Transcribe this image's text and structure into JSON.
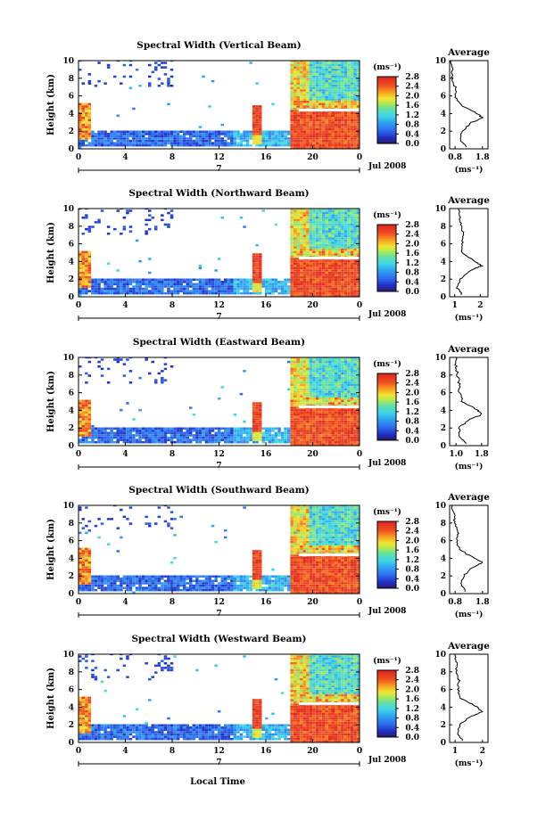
{
  "chart_data": [
    {
      "type": "heatmap",
      "title": "Spectral Width (Vertical Beam)",
      "avg_title": "Average",
      "xlabel": "",
      "ylabel": "Height (km)",
      "xlim": [
        0,
        24
      ],
      "ylim": [
        0,
        10
      ],
      "xticks": [
        "0",
        "4",
        "8",
        "12",
        "16",
        "20",
        "0"
      ],
      "yticks": [
        "0",
        "2",
        "4",
        "6",
        "8",
        "10"
      ],
      "date_marker": "7",
      "date_label": "Jul 2008",
      "colorbar": {
        "unit": "(ms⁻¹)",
        "ticks": [
          "0.0",
          "0.4",
          "0.8",
          "1.2",
          "1.6",
          "2.0",
          "2.4",
          "2.8"
        ]
      },
      "average": {
        "xlabel": "(ms⁻¹)",
        "xticks": [
          "0.8",
          "1.8"
        ],
        "xlim": [
          0.6,
          2.0
        ],
        "yticks": [
          "0",
          "2",
          "4",
          "6",
          "8",
          "10"
        ],
        "profile": [
          [
            0.2,
            1.25
          ],
          [
            1,
            1.0
          ],
          [
            2,
            1.05
          ],
          [
            3,
            1.4
          ],
          [
            3.5,
            1.8
          ],
          [
            4,
            1.6
          ],
          [
            5,
            1.0
          ],
          [
            6,
            0.8
          ],
          [
            7,
            0.8
          ],
          [
            8,
            0.7
          ],
          [
            9,
            0.7
          ],
          [
            10,
            0.65
          ]
        ]
      }
    },
    {
      "type": "heatmap",
      "title": "Spectral Width (Northward Beam)",
      "avg_title": "Average",
      "xlabel": "",
      "ylabel": "Height (km)",
      "xlim": [
        0,
        24
      ],
      "ylim": [
        0,
        10
      ],
      "xticks": [
        "0",
        "4",
        "8",
        "12",
        "16",
        "20",
        "0"
      ],
      "yticks": [
        "0",
        "2",
        "4",
        "6",
        "8",
        "10"
      ],
      "date_marker": "7",
      "date_label": "Jul 2008",
      "colorbar": {
        "unit": "(ms⁻¹)",
        "ticks": [
          "0.0",
          "0.4",
          "0.8",
          "1.2",
          "1.6",
          "2.0",
          "2.4",
          "2.8"
        ]
      },
      "average": {
        "xlabel": "(ms⁻¹)",
        "xticks": [
          "1",
          "2"
        ],
        "xlim": [
          0.8,
          2.3
        ],
        "yticks": [
          "0",
          "2",
          "4",
          "6",
          "8",
          "10"
        ],
        "profile": [
          [
            0.2,
            1.3
          ],
          [
            1,
            1.1
          ],
          [
            2,
            1.2
          ],
          [
            3,
            1.6
          ],
          [
            3.5,
            2.05
          ],
          [
            4,
            1.8
          ],
          [
            5,
            1.3
          ],
          [
            6,
            1.3
          ],
          [
            7,
            1.35
          ],
          [
            8,
            1.25
          ],
          [
            9,
            1.2
          ],
          [
            10,
            1.15
          ]
        ]
      }
    },
    {
      "type": "heatmap",
      "title": "Spectral Width (Eastward Beam)",
      "avg_title": "Average",
      "xlabel": "",
      "ylabel": "Height (km)",
      "xlim": [
        0,
        24
      ],
      "ylim": [
        0,
        10
      ],
      "xticks": [
        "0",
        "4",
        "8",
        "12",
        "16",
        "20",
        "0"
      ],
      "yticks": [
        "0",
        "2",
        "4",
        "6",
        "8",
        "10"
      ],
      "date_marker": "7",
      "date_label": "Jul 2008",
      "colorbar": {
        "unit": "(ms⁻¹)",
        "ticks": [
          "0.0",
          "0.4",
          "0.8",
          "1.2",
          "1.6",
          "2.0",
          "2.4",
          "2.8"
        ]
      },
      "average": {
        "xlabel": "(ms⁻¹)",
        "xticks": [
          "1.0",
          "1.8"
        ],
        "xlim": [
          0.8,
          2.0
        ],
        "yticks": [
          "0",
          "2",
          "4",
          "6",
          "8",
          "10"
        ],
        "profile": [
          [
            0.2,
            1.35
          ],
          [
            1,
            1.1
          ],
          [
            2,
            1.1
          ],
          [
            3,
            1.4
          ],
          [
            3.5,
            1.8
          ],
          [
            4,
            1.7
          ],
          [
            5,
            1.2
          ],
          [
            6,
            1.1
          ],
          [
            7,
            1.1
          ],
          [
            8,
            1.05
          ],
          [
            9,
            1.0
          ],
          [
            10,
            1.0
          ]
        ]
      }
    },
    {
      "type": "heatmap",
      "title": "Spectral Width (Southward Beam)",
      "avg_title": "Average",
      "xlabel": "",
      "ylabel": "Height (km)",
      "xlim": [
        0,
        24
      ],
      "ylim": [
        0,
        10
      ],
      "xticks": [
        "0",
        "4",
        "8",
        "12",
        "16",
        "20",
        "0"
      ],
      "yticks": [
        "0",
        "2",
        "4",
        "6",
        "8",
        "10"
      ],
      "date_marker": "7",
      "date_label": "Jul 2008",
      "colorbar": {
        "unit": "(ms⁻¹)",
        "ticks": [
          "0.0",
          "0.4",
          "0.8",
          "1.2",
          "1.6",
          "2.0",
          "2.4",
          "2.8"
        ]
      },
      "average": {
        "xlabel": "(ms⁻¹)",
        "xticks": [
          "0.8",
          "1.8"
        ],
        "xlim": [
          0.6,
          2.0
        ],
        "yticks": [
          "0",
          "2",
          "4",
          "6",
          "8",
          "10"
        ],
        "profile": [
          [
            0.2,
            1.2
          ],
          [
            1,
            1.0
          ],
          [
            2,
            1.1
          ],
          [
            3,
            1.45
          ],
          [
            3.5,
            1.8
          ],
          [
            4,
            1.5
          ],
          [
            5,
            0.95
          ],
          [
            6,
            0.85
          ],
          [
            7,
            0.9
          ],
          [
            8,
            0.8
          ],
          [
            9,
            0.75
          ],
          [
            10,
            0.7
          ]
        ]
      }
    },
    {
      "type": "heatmap",
      "title": "Spectral Width (Westward Beam)",
      "avg_title": "Average",
      "xlabel": "Local Time",
      "ylabel": "Height (km)",
      "xlim": [
        0,
        24
      ],
      "ylim": [
        0,
        10
      ],
      "xticks": [
        "0",
        "4",
        "8",
        "12",
        "16",
        "20",
        "0"
      ],
      "yticks": [
        "0",
        "2",
        "4",
        "6",
        "8",
        "10"
      ],
      "date_marker": "7",
      "date_label": "Jul 2008",
      "colorbar": {
        "unit": "(ms⁻¹)",
        "ticks": [
          "0.0",
          "0.4",
          "0.8",
          "1.2",
          "1.6",
          "2.0",
          "2.4",
          "2.8"
        ]
      },
      "average": {
        "xlabel": "(ms⁻¹)",
        "xticks": [
          "1",
          "2"
        ],
        "xlim": [
          0.8,
          2.2
        ],
        "yticks": [
          "0",
          "2",
          "4",
          "6",
          "8",
          "10"
        ],
        "profile": [
          [
            0.2,
            1.3
          ],
          [
            1,
            1.1
          ],
          [
            2,
            1.15
          ],
          [
            3,
            1.6
          ],
          [
            3.5,
            2.0
          ],
          [
            4,
            1.8
          ],
          [
            5,
            1.2
          ],
          [
            6,
            1.1
          ],
          [
            7,
            1.15
          ],
          [
            8,
            1.05
          ],
          [
            9,
            1.05
          ],
          [
            10,
            1.0
          ]
        ]
      }
    }
  ]
}
